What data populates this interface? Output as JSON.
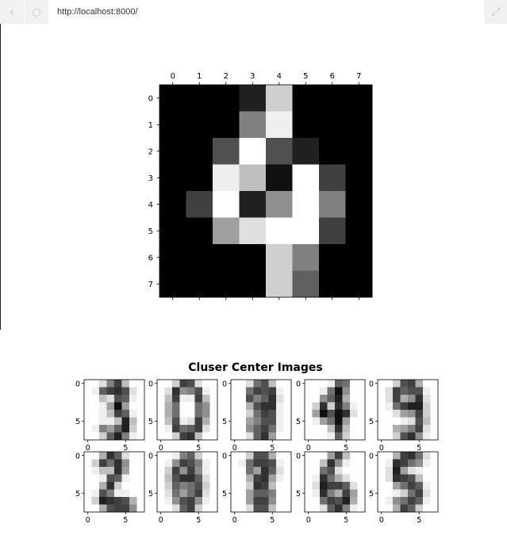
{
  "browser": {
    "url": "http://localhost:8000/",
    "back_icon": "chevron-left-icon",
    "reload_icon": "reload-icon",
    "expand_icon": "expand-icon"
  },
  "chart_data": [
    {
      "type": "heatmap",
      "title": "",
      "xlabel": "",
      "ylabel": "",
      "x_ticks": [
        "0",
        "1",
        "2",
        "3",
        "4",
        "5",
        "6",
        "7"
      ],
      "y_ticks": [
        "0",
        "1",
        "2",
        "3",
        "4",
        "5",
        "6",
        "7"
      ],
      "colormap": "gray",
      "vmin": 0,
      "vmax": 16,
      "values": [
        [
          0,
          0,
          0,
          2,
          13,
          0,
          0,
          0
        ],
        [
          0,
          0,
          0,
          8,
          15,
          0,
          0,
          0
        ],
        [
          0,
          0,
          5,
          16,
          5,
          2,
          0,
          0
        ],
        [
          0,
          0,
          15,
          12,
          1,
          16,
          4,
          0
        ],
        [
          0,
          4,
          16,
          2,
          9,
          16,
          8,
          0
        ],
        [
          0,
          0,
          10,
          14,
          16,
          16,
          4,
          0
        ],
        [
          0,
          0,
          0,
          0,
          13,
          8,
          0,
          0
        ],
        [
          0,
          0,
          0,
          0,
          13,
          6,
          0,
          0
        ]
      ]
    },
    {
      "type": "heatmap",
      "title": "Cluser Center Images",
      "colormap": "binary",
      "vmin": 0,
      "vmax": 16,
      "x_ticks": [
        "0",
        "5"
      ],
      "y_ticks": [
        "0",
        "5"
      ],
      "grid_rows": 2,
      "grid_cols": 5,
      "images": [
        [
          [
            0,
            0,
            2,
            8,
            12,
            4,
            0,
            0
          ],
          [
            0,
            1,
            10,
            12,
            13,
            11,
            2,
            0
          ],
          [
            0,
            0,
            4,
            2,
            11,
            10,
            1,
            0
          ],
          [
            0,
            0,
            1,
            6,
            15,
            6,
            0,
            0
          ],
          [
            0,
            0,
            1,
            4,
            12,
            10,
            1,
            0
          ],
          [
            0,
            0,
            1,
            1,
            4,
            14,
            4,
            0
          ],
          [
            0,
            1,
            8,
            6,
            10,
            14,
            3,
            0
          ],
          [
            0,
            0,
            3,
            10,
            14,
            8,
            1,
            0
          ]
        ],
        [
          [
            0,
            0,
            3,
            12,
            11,
            2,
            0,
            0
          ],
          [
            0,
            2,
            13,
            7,
            8,
            11,
            1,
            0
          ],
          [
            0,
            4,
            12,
            1,
            1,
            12,
            4,
            0
          ],
          [
            0,
            5,
            9,
            0,
            0,
            9,
            7,
            0
          ],
          [
            0,
            5,
            9,
            0,
            0,
            9,
            7,
            0
          ],
          [
            0,
            4,
            11,
            1,
            2,
            12,
            5,
            0
          ],
          [
            0,
            1,
            12,
            9,
            10,
            12,
            2,
            0
          ],
          [
            0,
            0,
            3,
            12,
            13,
            4,
            0,
            0
          ]
        ],
        [
          [
            0,
            0,
            2,
            9,
            11,
            4,
            0,
            0
          ],
          [
            0,
            0,
            9,
            12,
            11,
            12,
            1,
            0
          ],
          [
            0,
            0,
            11,
            8,
            10,
            13,
            2,
            0
          ],
          [
            0,
            0,
            5,
            11,
            13,
            13,
            1,
            0
          ],
          [
            0,
            0,
            3,
            9,
            12,
            11,
            1,
            0
          ],
          [
            0,
            0,
            6,
            8,
            11,
            11,
            1,
            0
          ],
          [
            0,
            0,
            7,
            10,
            12,
            9,
            1,
            0
          ],
          [
            0,
            0,
            2,
            10,
            13,
            6,
            0,
            0
          ]
        ],
        [
          [
            0,
            0,
            0,
            1,
            10,
            9,
            0,
            0
          ],
          [
            0,
            0,
            1,
            9,
            15,
            7,
            0,
            0
          ],
          [
            0,
            0,
            7,
            10,
            14,
            5,
            0,
            0
          ],
          [
            0,
            3,
            13,
            3,
            13,
            8,
            1,
            0
          ],
          [
            0,
            6,
            15,
            11,
            15,
            13,
            2,
            0
          ],
          [
            0,
            1,
            6,
            9,
            15,
            6,
            0,
            0
          ],
          [
            0,
            0,
            0,
            4,
            13,
            4,
            0,
            0
          ],
          [
            0,
            0,
            0,
            1,
            10,
            3,
            0,
            0
          ]
        ],
        [
          [
            0,
            0,
            3,
            11,
            12,
            5,
            0,
            0
          ],
          [
            0,
            2,
            12,
            10,
            11,
            11,
            1,
            0
          ],
          [
            0,
            2,
            12,
            5,
            7,
            13,
            2,
            0
          ],
          [
            0,
            1,
            9,
            12,
            14,
            14,
            3,
            0
          ],
          [
            0,
            0,
            2,
            6,
            7,
            12,
            3,
            0
          ],
          [
            0,
            0,
            0,
            1,
            2,
            11,
            4,
            0
          ],
          [
            0,
            0,
            5,
            6,
            8,
            12,
            2,
            0
          ],
          [
            0,
            0,
            3,
            11,
            13,
            7,
            1,
            0
          ]
        ],
        [
          [
            0,
            0,
            5,
            13,
            10,
            2,
            0,
            0
          ],
          [
            0,
            3,
            12,
            9,
            13,
            7,
            0,
            0
          ],
          [
            0,
            1,
            4,
            4,
            13,
            6,
            0,
            0
          ],
          [
            0,
            0,
            1,
            11,
            10,
            1,
            0,
            0
          ],
          [
            0,
            0,
            5,
            13,
            3,
            0,
            0,
            0
          ],
          [
            0,
            1,
            11,
            8,
            1,
            1,
            0,
            0
          ],
          [
            0,
            3,
            14,
            13,
            12,
            11,
            5,
            0
          ],
          [
            0,
            0,
            5,
            11,
            12,
            12,
            7,
            0
          ]
        ],
        [
          [
            0,
            0,
            1,
            8,
            10,
            3,
            0,
            0
          ],
          [
            0,
            1,
            7,
            12,
            11,
            8,
            1,
            0
          ],
          [
            0,
            3,
            12,
            7,
            12,
            7,
            1,
            0
          ],
          [
            0,
            4,
            11,
            13,
            13,
            10,
            2,
            0
          ],
          [
            0,
            3,
            10,
            8,
            9,
            11,
            3,
            0
          ],
          [
            0,
            2,
            9,
            6,
            9,
            12,
            2,
            0
          ],
          [
            0,
            1,
            7,
            11,
            12,
            7,
            1,
            0
          ],
          [
            0,
            0,
            2,
            10,
            12,
            3,
            0,
            0
          ]
        ],
        [
          [
            0,
            0,
            3,
            11,
            11,
            5,
            0,
            0
          ],
          [
            0,
            1,
            9,
            12,
            12,
            11,
            1,
            0
          ],
          [
            0,
            0,
            9,
            6,
            13,
            10,
            2,
            0
          ],
          [
            0,
            0,
            5,
            12,
            13,
            6,
            1,
            0
          ],
          [
            0,
            0,
            3,
            13,
            12,
            4,
            0,
            0
          ],
          [
            0,
            0,
            6,
            10,
            10,
            8,
            0,
            0
          ],
          [
            0,
            0,
            6,
            12,
            12,
            7,
            0,
            0
          ],
          [
            0,
            0,
            2,
            11,
            11,
            4,
            0,
            0
          ]
        ],
        [
          [
            0,
            0,
            0,
            6,
            12,
            4,
            0,
            0
          ],
          [
            0,
            0,
            4,
            13,
            7,
            1,
            0,
            0
          ],
          [
            0,
            0,
            9,
            11,
            2,
            0,
            0,
            0
          ],
          [
            0,
            1,
            13,
            9,
            5,
            2,
            0,
            0
          ],
          [
            0,
            2,
            14,
            12,
            12,
            10,
            2,
            0
          ],
          [
            0,
            1,
            13,
            8,
            5,
            12,
            6,
            0
          ],
          [
            0,
            0,
            9,
            12,
            11,
            14,
            5,
            0
          ],
          [
            0,
            0,
            2,
            10,
            13,
            8,
            1,
            0
          ]
        ],
        [
          [
            0,
            0,
            5,
            12,
            13,
            9,
            2,
            0
          ],
          [
            0,
            1,
            13,
            12,
            9,
            7,
            1,
            0
          ],
          [
            0,
            2,
            14,
            6,
            2,
            1,
            0,
            0
          ],
          [
            0,
            2,
            13,
            12,
            11,
            4,
            0,
            0
          ],
          [
            0,
            0,
            6,
            9,
            12,
            10,
            1,
            0
          ],
          [
            0,
            0,
            1,
            3,
            9,
            12,
            2,
            0
          ],
          [
            0,
            1,
            7,
            9,
            12,
            10,
            1,
            0
          ],
          [
            0,
            0,
            5,
            12,
            10,
            3,
            0,
            0
          ]
        ]
      ]
    }
  ]
}
